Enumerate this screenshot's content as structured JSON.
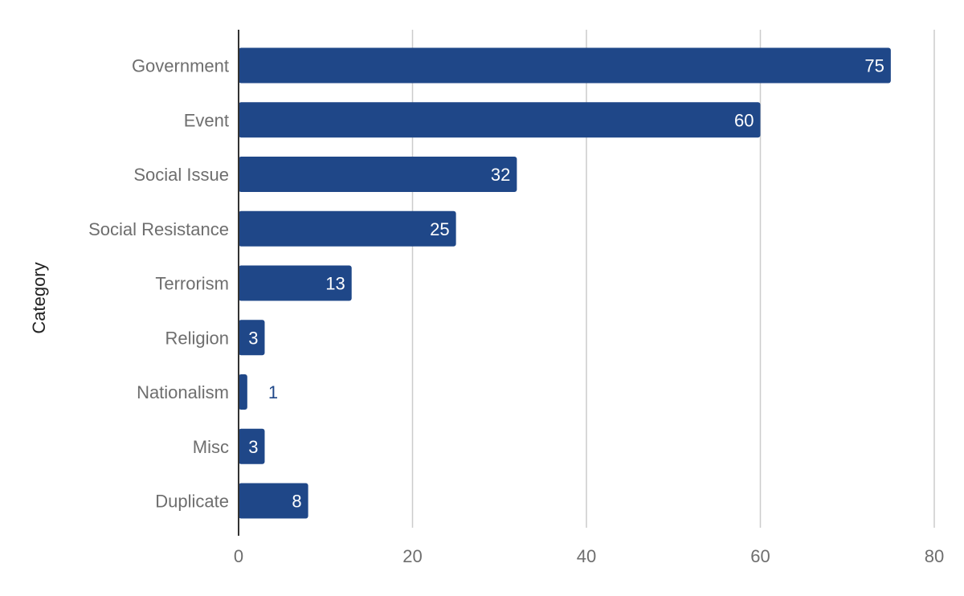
{
  "chart_data": {
    "type": "bar",
    "orientation": "horizontal",
    "categories": [
      "Government",
      "Event",
      "Social Issue",
      "Social Resistance",
      "Terrorism",
      "Religion",
      "Nationalism",
      "Misc",
      "Duplicate"
    ],
    "values": [
      75,
      60,
      32,
      25,
      13,
      3,
      1,
      3,
      8
    ],
    "ylabel": "Category",
    "xlim": [
      0,
      80
    ],
    "xticks": [
      0,
      20,
      40,
      60,
      80
    ],
    "grid": "vertical",
    "legend": "none",
    "bar_color": "#1f4788",
    "label_inside_color": "#ffffff",
    "label_outside_color": "#1f4788",
    "gridline_color": "#cccccc",
    "axis_color": "#333333"
  }
}
